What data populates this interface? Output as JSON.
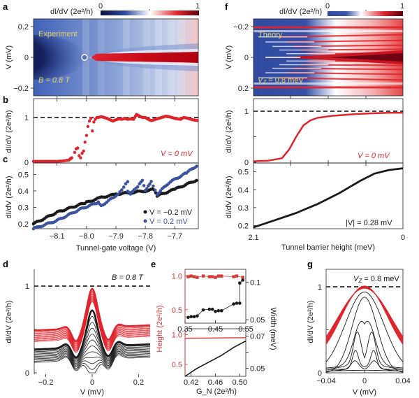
{
  "colors": {
    "red": "#e0242b",
    "black": "#1a1a1a",
    "blue": "#3a52a0",
    "dashed": "#000000",
    "label_yellow": "#e6d36a",
    "height_axis": "#d33a3a"
  },
  "chart_data": [
    {
      "panel": "a",
      "type": "heatmap",
      "title": "Experiment",
      "colorbar": {
        "label": "dI/dV (2e²/h)",
        "min": "0",
        "max": "1",
        "colors": [
          "#0a0f3a",
          "#2f4aa0",
          "#ffffff",
          "#e0242b",
          "#5a0010"
        ]
      },
      "ylabel": "V (mV)",
      "yticks": [
        "0.2",
        "0",
        "−0.2"
      ],
      "ylim": [
        -0.25,
        0.25
      ],
      "xlim": [
        -8.18,
        -7.62
      ],
      "annotation": "B = 0.8 T",
      "description": "zero-bias peak emerges at tunnel-gate ≈ −8.0 V and stays red to the right"
    },
    {
      "panel": "b",
      "type": "scatter",
      "ylabel": "dI/dV (2e²/h)",
      "yticks": [
        "0",
        "1"
      ],
      "ylim": [
        0,
        1.25
      ],
      "xlim": [
        -8.18,
        -7.62
      ],
      "reference_line": 1,
      "annotation": "V = 0 mV",
      "series": [
        {
          "name": "V = 0 mV",
          "color": "#e0242b",
          "x": [
            -8.18,
            -8.16,
            -8.14,
            -8.12,
            -8.1,
            -8.08,
            -8.06,
            -8.05,
            -8.04,
            -8.035,
            -8.03,
            -8.025,
            -8.02,
            -8.015,
            -8.01,
            -8.005,
            -8.0,
            -7.995,
            -7.99,
            -7.985,
            -7.98,
            -7.975,
            -7.97,
            -7.965,
            -7.96,
            -7.95,
            -7.94,
            -7.93,
            -7.92,
            -7.91,
            -7.9,
            -7.89,
            -7.88,
            -7.87,
            -7.86,
            -7.85,
            -7.84,
            -7.83,
            -7.82,
            -7.81,
            -7.8,
            -7.79,
            -7.78,
            -7.77,
            -7.76,
            -7.75,
            -7.74,
            -7.73,
            -7.72,
            -7.71,
            -7.7,
            -7.69,
            -7.68,
            -7.67,
            -7.66,
            -7.65,
            -7.64,
            -7.63,
            -7.62
          ],
          "y": [
            0.02,
            0.02,
            0.02,
            0.02,
            0.02,
            0.03,
            0.05,
            0.1,
            0.22,
            0.3,
            0.32,
            0.15,
            0.1,
            0.2,
            0.25,
            0.45,
            0.6,
            0.8,
            0.92,
            0.98,
            0.7,
            0.9,
            0.96,
            1.0,
            1.0,
            1.02,
            1.0,
            0.98,
            0.95,
            0.92,
            0.95,
            0.97,
            0.96,
            0.98,
            0.96,
            0.97,
            0.96,
            1.07,
            1.03,
            1.0,
            1.0,
            0.96,
            0.93,
            0.95,
            0.97,
            0.99,
            1.01,
            1.03,
            1.02,
            1.0,
            0.98,
            0.97,
            0.96,
            1.0,
            0.99,
            0.97,
            0.95,
            0.94,
            0.93
          ]
        }
      ]
    },
    {
      "panel": "c",
      "type": "scatter",
      "xlabel": "Tunnel-gate voltage (V)",
      "ylabel": "dI/dV (2e²/h)",
      "xticks": [
        "−8.1",
        "−8.0",
        "−7.9",
        "−7.8",
        "−7.7"
      ],
      "xlim": [
        -8.18,
        -7.62
      ],
      "yticks": [
        "0.2",
        "0.3",
        "0.4",
        "0.5"
      ],
      "ylim": [
        0.17,
        0.57
      ],
      "legend": [
        "V = −0.2 mV",
        "V = 0.2 mV"
      ],
      "legend_position": "bottom-right",
      "series": [
        {
          "name": "V = −0.2 mV",
          "color": "#1a1a1a",
          "x": [
            -8.18,
            -8.1,
            -8.0,
            -7.95,
            -7.9,
            -7.85,
            -7.8,
            -7.77,
            -7.76,
            -7.7,
            -7.62
          ],
          "y": [
            0.2,
            0.27,
            0.33,
            0.36,
            0.38,
            0.39,
            0.4,
            0.41,
            0.37,
            0.41,
            0.47
          ]
        },
        {
          "name": "V = 0.2 mV",
          "color": "#3a52a0",
          "x": [
            -8.18,
            -8.1,
            -8.02,
            -7.96,
            -7.95,
            -7.9,
            -7.88,
            -7.86,
            -7.86,
            -7.85,
            -7.82,
            -7.81,
            -7.8,
            -7.79,
            -7.78,
            -7.76,
            -7.72,
            -7.66,
            -7.62
          ],
          "y": [
            0.17,
            0.22,
            0.29,
            0.33,
            0.31,
            0.37,
            0.41,
            0.46,
            0.4,
            0.38,
            0.44,
            0.46,
            0.4,
            0.43,
            0.46,
            0.38,
            0.45,
            0.51,
            0.56
          ]
        }
      ]
    },
    {
      "panel": "d",
      "type": "line",
      "xlabel": "V (mV)",
      "ylabel": "dI/dV (2e²/h)",
      "xticks": [
        "−0.2",
        "0",
        "0.2"
      ],
      "xlim": [
        -0.25,
        0.25
      ],
      "yticks": [
        "0",
        "1"
      ],
      "ylim": [
        0,
        1.2
      ],
      "reference_line": 1,
      "annotation": "B = 0.8 T",
      "series_groups": [
        {
          "color": "#e0242b",
          "count": 12,
          "baseline_range": [
            0.42,
            0.55
          ],
          "peak_range": [
            0.85,
            1.0
          ]
        },
        {
          "color": "#1a1a1a",
          "count": 12,
          "baseline_range": [
            0.18,
            0.33
          ],
          "peak_range": [
            0.0,
            0.75
          ]
        }
      ]
    },
    {
      "panel": "e-top",
      "type": "scatter",
      "xlabel": "",
      "ylabel_left": "Height (2e²/h)",
      "ylabel_right": "Width (meV)",
      "xticks": [
        "0.35",
        "0.45",
        "0.55"
      ],
      "xlim": [
        0.35,
        0.55
      ],
      "yticks_left": [
        "0.5",
        "1.0"
      ],
      "ylim_left": [
        0.3,
        1.1
      ],
      "yticks_right": [
        "0.05",
        "0.1"
      ],
      "ylim_right": [
        0.05,
        0.11
      ],
      "series": [
        {
          "name": "Height",
          "axis": "left",
          "color": "#d33a3a",
          "marker": "square",
          "x": [
            0.36,
            0.37,
            0.38,
            0.39,
            0.41,
            0.43,
            0.44,
            0.45,
            0.46,
            0.47,
            0.51,
            0.52,
            0.54
          ],
          "y": [
            0.99,
            1.0,
            0.99,
            0.98,
            1.0,
            0.99,
            0.99,
            0.98,
            1.0,
            1.0,
            0.99,
            1.0,
            0.98
          ]
        },
        {
          "name": "Width",
          "axis": "right",
          "color": "#1a1a1a",
          "marker": "circle",
          "x": [
            0.36,
            0.37,
            0.38,
            0.39,
            0.41,
            0.43,
            0.44,
            0.45,
            0.46,
            0.47,
            0.51,
            0.52,
            0.53,
            0.53,
            0.54
          ],
          "y": [
            0.053,
            0.054,
            0.054,
            0.055,
            0.063,
            0.064,
            0.064,
            0.061,
            0.062,
            0.062,
            0.071,
            0.072,
            0.072,
            0.099,
            0.103
          ]
        }
      ]
    },
    {
      "panel": "e-bottom",
      "type": "line",
      "xlabel": "G_N (2e²/h)",
      "ylabel_left": "Height (2e²/h)",
      "ylabel_right": "Width (meV)",
      "xticks": [
        "0.42",
        "0.46",
        "0.50"
      ],
      "xlim": [
        0.41,
        0.51
      ],
      "yticks_left": [
        "0.5",
        "1.0"
      ],
      "ylim_left": [
        0.3,
        1.1
      ],
      "yticks_right": [
        "0.05",
        "0.07"
      ],
      "ylim_right": [
        0.045,
        0.072
      ],
      "series": [
        {
          "name": "Height",
          "axis": "left",
          "color": "#d33a3a",
          "x": [
            0.41,
            0.51
          ],
          "y": [
            0.94,
            0.95
          ]
        },
        {
          "name": "Width",
          "axis": "right",
          "color": "#1a1a1a",
          "x": [
            0.41,
            0.43,
            0.45,
            0.47,
            0.49,
            0.51
          ],
          "y": [
            0.045,
            0.05,
            0.054,
            0.058,
            0.063,
            0.067
          ]
        }
      ]
    },
    {
      "panel": "f",
      "type": "heatmap",
      "title": "Theory",
      "colorbar": {
        "label": "dI/dV (2e²/h)",
        "min": "0",
        "max": "1",
        "colors": [
          "#2f4aa0",
          "#ffffff",
          "#e0242b",
          "#5a0010"
        ]
      },
      "ylabel": "V (mV)",
      "yticks": [
        "−0.2",
        "0",
        "0.2"
      ],
      "ylim": [
        -0.25,
        0.25
      ],
      "annotation": "V_Z = 0.8 meV",
      "description": "discrete subgap bands fan out; zero-bias peak grows as barrier decreases"
    },
    {
      "panel": "f-middle",
      "type": "line",
      "ylabel": "dI/dV (2e²/h)",
      "yticks": [
        "0",
        "1"
      ],
      "ylim": [
        0,
        1.25
      ],
      "xlim": [
        2.1,
        0
      ],
      "reference_line": 1,
      "annotation": "V = 0 mV",
      "series": [
        {
          "name": "V = 0 mV",
          "color": "#e0242b",
          "x": [
            2.1,
            1.9,
            1.7,
            1.6,
            1.5,
            1.4,
            1.3,
            1.2,
            1.0,
            0.8,
            0.6,
            0.4,
            0.2,
            0
          ],
          "y": [
            0.02,
            0.03,
            0.08,
            0.25,
            0.5,
            0.72,
            0.82,
            0.87,
            0.91,
            0.93,
            0.95,
            0.96,
            0.97,
            0.97
          ]
        }
      ]
    },
    {
      "panel": "f-bottom",
      "type": "line",
      "xlabel": "Tunnel barrier height (meV)",
      "ylabel": "dI/dV (2e²/h)",
      "xticks": [
        "2.1",
        "0"
      ],
      "xlim": [
        2.1,
        0
      ],
      "yticks": [
        "0.2",
        "0.3",
        "0.4",
        "0.5"
      ],
      "ylim": [
        0.19,
        0.53
      ],
      "annotation": "|V| = 0.28 mV",
      "series": [
        {
          "name": "|V| = 0.28 mV",
          "color": "#1a1a1a",
          "x": [
            2.1,
            1.8,
            1.5,
            1.2,
            0.9,
            0.6,
            0.4,
            0.2,
            0
          ],
          "y": [
            0.19,
            0.23,
            0.27,
            0.32,
            0.38,
            0.45,
            0.49,
            0.51,
            0.52
          ]
        }
      ]
    },
    {
      "panel": "g",
      "type": "line",
      "xlabel": "V (mV)",
      "ylabel": "dI/dV (2e²/h)",
      "xticks": [
        "−0.04",
        "0",
        "0.04"
      ],
      "xlim": [
        -0.04,
        0.04
      ],
      "yticks": [
        "0",
        "1"
      ],
      "ylim": [
        0,
        1.2
      ],
      "reference_line": 1,
      "annotation": "V_Z = 0.8 meV",
      "series_groups": [
        {
          "color": "#e0242b",
          "count": 8,
          "edge_range": [
            0.33,
            0.42
          ],
          "peak": 0.97
        },
        {
          "color": "#1a1a1a",
          "count": 7,
          "peak_values": [
            0.94,
            0.88,
            0.6,
            0.4,
            0.2,
            0.12,
            0.02
          ]
        }
      ]
    }
  ],
  "labels": {
    "a": "a",
    "b": "b",
    "c": "c",
    "d": "d",
    "e": "e",
    "f": "f",
    "g": "g",
    "exp_title": "Experiment",
    "theory_title": "Theory",
    "b_field": "B = 0.8 T",
    "b_field_d": "B = 0.8 T",
    "vz": "V",
    "vz_sub": "Z",
    "vz_val": " = 0.8 meV",
    "v0": "V = 0 mV",
    "v028": "|V| = 0.28 mV",
    "leg_neg": "V = −0.2 mV",
    "leg_pos": "V = 0.2 mV",
    "cbar_label": "dI/dV (2e²/h)",
    "cbar_min": "0",
    "cbar_max": "1",
    "ylab_V": "V (mV)",
    "ylab_didv": "dI/dV (2e²/h)",
    "xlab_gate": "Tunnel-gate voltage (V)",
    "xlab_barrier": "Tunnel barrier height (meV)",
    "xlab_V": "V (mV)",
    "xlab_GN": "G_N (2e²/h)",
    "ylab_height": "Height (2e²/h)",
    "ylab_width": "Width (meV)"
  }
}
